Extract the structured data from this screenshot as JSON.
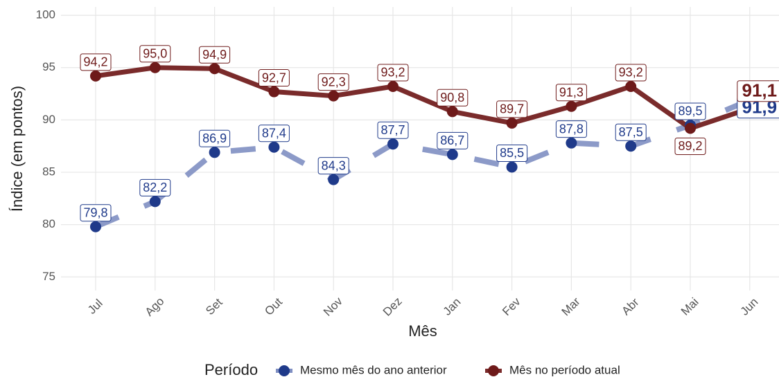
{
  "chart_data": {
    "type": "line",
    "x_label": "Mês",
    "y_label": "Índice (em pontos)",
    "legend_title": "Período",
    "categories": [
      "Jul",
      "Ago",
      "Set",
      "Out",
      "Nov",
      "Dez",
      "Jan",
      "Fev",
      "Mar",
      "Abr",
      "Mai",
      "Jun"
    ],
    "series": [
      {
        "name": "Mesmo mês do ano anterior",
        "color": "#1f3a8a",
        "line_color": "#7f8fc2",
        "dashed": true,
        "values": [
          79.8,
          82.2,
          86.9,
          87.4,
          84.3,
          87.7,
          86.7,
          85.5,
          87.8,
          87.5,
          89.5,
          91.9
        ],
        "value_labels": [
          "79,8",
          "82,2",
          "86,9",
          "87,4",
          "84,3",
          "87,7",
          "86,7",
          "85,5",
          "87,8",
          "87,5",
          "89,5",
          "91,9"
        ]
      },
      {
        "name": "Mês no período atual",
        "color": "#6e1a1a",
        "line_color": "#7a2b2b",
        "dashed": false,
        "values": [
          94.2,
          95.0,
          94.9,
          92.7,
          92.3,
          93.2,
          90.8,
          89.7,
          91.3,
          93.2,
          89.2,
          91.1
        ],
        "value_labels": [
          "94,2",
          "95,0",
          "94,9",
          "92,7",
          "92,3",
          "93,2",
          "90,8",
          "89,7",
          "91,3",
          "93,2",
          "89,2",
          "91,1"
        ]
      }
    ],
    "ylim": [
      73.7,
      100.8
    ],
    "yticks": [
      75,
      80,
      85,
      90,
      95,
      100
    ],
    "grid": true,
    "legend": "bottom"
  }
}
